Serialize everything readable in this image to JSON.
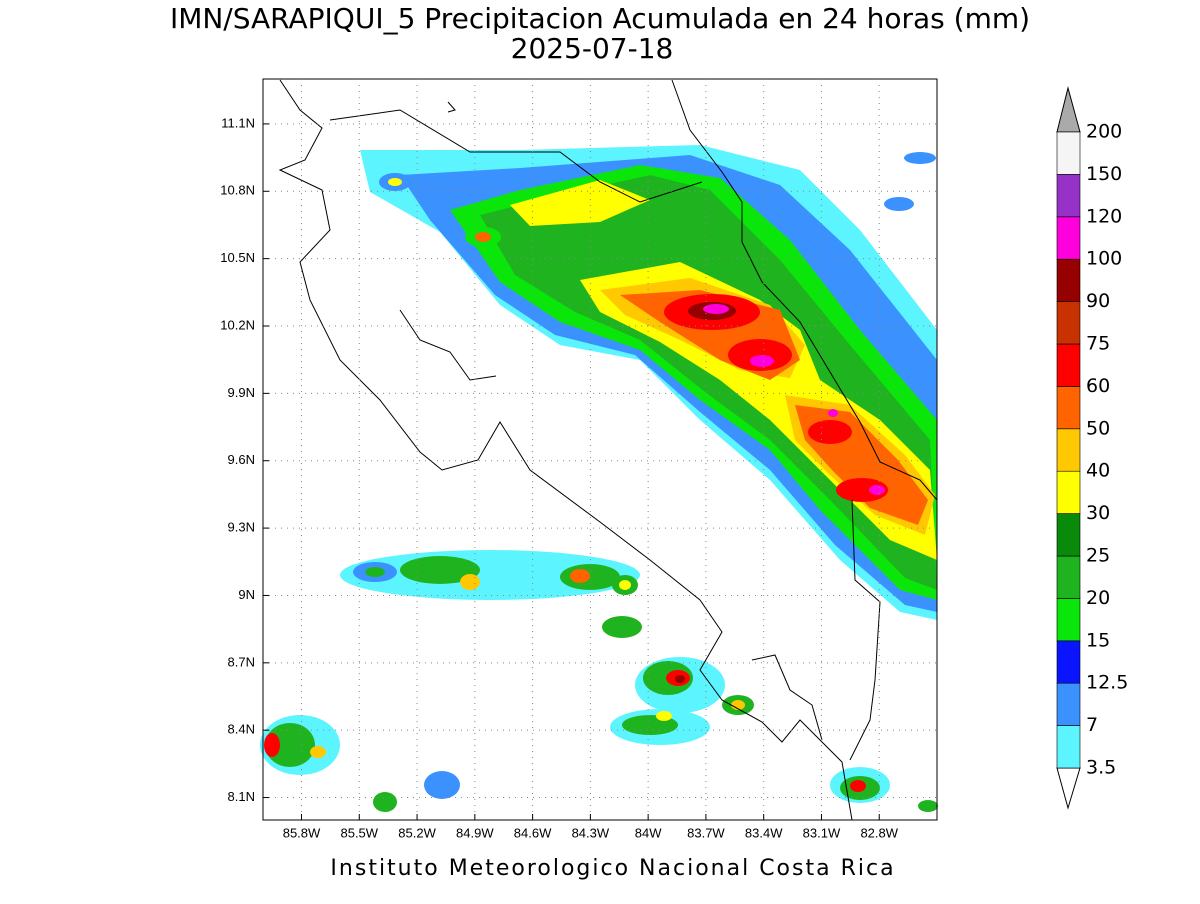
{
  "title": "IMN/SARAPIQUI_5 Precipitacion Acumulada en 24 horas (mm)",
  "subtitle": "2025-07-18",
  "footer": "Instituto Meteorologico Nacional Costa Rica",
  "map": {
    "xlim": [
      -86.0,
      -82.5
    ],
    "ylim": [
      8.0,
      11.3
    ],
    "xticks": [
      {
        "value": -85.8,
        "label": "85.8W"
      },
      {
        "value": -85.5,
        "label": "85.5W"
      },
      {
        "value": -85.2,
        "label": "85.2W"
      },
      {
        "value": -84.9,
        "label": "84.9W"
      },
      {
        "value": -84.6,
        "label": "84.6W"
      },
      {
        "value": -84.3,
        "label": "84.3W"
      },
      {
        "value": -84.0,
        "label": "84W"
      },
      {
        "value": -83.7,
        "label": "83.7W"
      },
      {
        "value": -83.4,
        "label": "83.4W"
      },
      {
        "value": -83.1,
        "label": "83.1W"
      },
      {
        "value": -82.8,
        "label": "82.8W"
      }
    ],
    "yticks": [
      {
        "value": 8.1,
        "label": "8.1N"
      },
      {
        "value": 8.4,
        "label": "8.4N"
      },
      {
        "value": 8.7,
        "label": "8.7N"
      },
      {
        "value": 9.0,
        "label": "9N"
      },
      {
        "value": 9.3,
        "label": "9.3N"
      },
      {
        "value": 9.6,
        "label": "9.6N"
      },
      {
        "value": 9.9,
        "label": "9.9N"
      },
      {
        "value": 10.2,
        "label": "10.2N"
      },
      {
        "value": 10.5,
        "label": "10.5N"
      },
      {
        "value": 10.8,
        "label": "10.8N"
      },
      {
        "value": 11.1,
        "label": "11.1N"
      }
    ],
    "grid": true
  },
  "colorbar": {
    "levels": [
      3.5,
      7,
      12.5,
      15,
      20,
      25,
      30,
      40,
      50,
      60,
      75,
      90,
      100,
      120,
      150,
      200
    ],
    "colors": [
      "#5cf5ff",
      "#3b92ff",
      "#0a14ff",
      "#0ae60a",
      "#1fb41f",
      "#0a8a0a",
      "#ffff00",
      "#ffc800",
      "#ff6400",
      "#ff0000",
      "#c83200",
      "#960000",
      "#ff00dc",
      "#9632c8",
      "#f5f5f5"
    ],
    "under_color": "#ffffff",
    "over_color": "#aaaaaa"
  }
}
